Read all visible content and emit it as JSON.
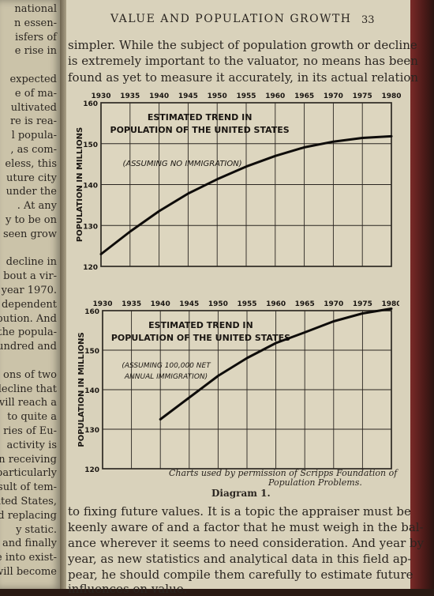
{
  "left_page": {
    "lines": [
      "national",
      "n essen-",
      "isfers of",
      "e rise in",
      "",
      "expected",
      "e of ma-",
      "ultivated",
      "re is rea-",
      "l popula-",
      ", as com-",
      "eless, this",
      "uture city",
      "under the",
      ". At any",
      "y to be on",
      "seen grow",
      "",
      "decline in",
      "bout a vir-",
      "year 1970.",
      "dependent",
      "ribution. And",
      "the popula-",
      "undred and",
      "",
      "ons of two",
      "decline that",
      "vill reach a",
      "to quite a",
      "ries of Eu-",
      "activity is",
      "en receiving",
      "particularly",
      "sult of tem-",
      "ited States,",
      "d replacing",
      "y static.",
      "and finally",
      "e into exist-",
      "will become"
    ]
  },
  "header": {
    "running_head": "VALUE AND POPULATION GROWTH",
    "page_number": "33"
  },
  "top_text": [
    "simpler.  While the subject of population growth or decline",
    "is extremely important to the valuator, no means has been",
    "found as yet to measure it accurately, in its actual relation"
  ],
  "chart_data": [
    {
      "type": "line",
      "title": "ESTIMATED TREND IN POPULATION OF THE UNITED STATES",
      "annotation": "(ASSUMING NO IMMIGRATION)",
      "ylabel": "POPULATION IN MILLIONS",
      "xlabel": "",
      "x_ticks": [
        "1930",
        "1935",
        "1940",
        "1945",
        "1950",
        "1955",
        "1960",
        "1965",
        "1970",
        "1975",
        "1980"
      ],
      "y_ticks": [
        "120",
        "130",
        "140",
        "150",
        "160"
      ],
      "xlim": [
        1930,
        1980
      ],
      "ylim": [
        120,
        160
      ],
      "grid": true,
      "series": [
        {
          "x": [
            1930,
            1935,
            1940,
            1945,
            1950,
            1955,
            1960,
            1965,
            1970,
            1975,
            1980
          ],
          "y": [
            123.0,
            128.5,
            133.5,
            137.8,
            141.3,
            144.4,
            147.0,
            149.1,
            150.5,
            151.4,
            151.8
          ]
        }
      ]
    },
    {
      "type": "line",
      "title": "ESTIMATED TREND IN POPULATION OF THE UNITED STATES",
      "annotation": "(ASSUMING 100,000 NET ANNUAL IMMIGRATION)",
      "ylabel": "POPULATION IN MILLIONS",
      "xlabel": "",
      "x_ticks": [
        "1930",
        "1935",
        "1940",
        "1945",
        "1950",
        "1955",
        "1960",
        "1965",
        "1970",
        "1975",
        "1980"
      ],
      "y_ticks": [
        "120",
        "130",
        "140",
        "150",
        "160"
      ],
      "xlim": [
        1930,
        1980
      ],
      "ylim": [
        120,
        160
      ],
      "grid": true,
      "series": [
        {
          "x": [
            1940,
            1945,
            1950,
            1955,
            1960,
            1965,
            1970,
            1975,
            1980
          ],
          "y": [
            132.5,
            138.0,
            143.5,
            148.0,
            151.8,
            154.5,
            157.3,
            159.3,
            160.5
          ]
        }
      ]
    }
  ],
  "credit": [
    "Charts used by permission of Scripps Foundation of",
    "Population Problems."
  ],
  "diagram_caption": "Diagram 1.",
  "bottom_text": [
    "to fixing future values.  It is a topic the appraiser must be",
    "keenly aware of and a factor that he must weigh in the bal-",
    "ance wherever it seems to need consideration.  And year by",
    "year, as new statistics and analytical data in this field ap-",
    "pear, he should compile them carefully to estimate future",
    "influences on value."
  ]
}
